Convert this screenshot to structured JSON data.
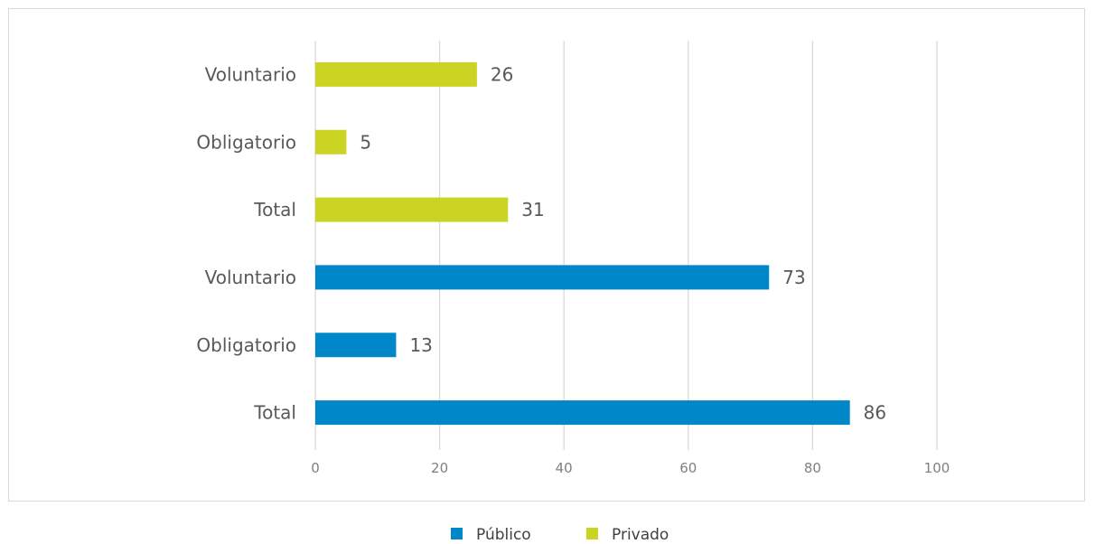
{
  "chart_data": {
    "type": "bar",
    "orientation": "horizontal",
    "categories": [
      "Total",
      "Obligatorio",
      "Voluntario",
      "Total",
      "Obligatorio",
      "Voluntario"
    ],
    "values": [
      86,
      13,
      73,
      31,
      5,
      26
    ],
    "series_of_category": [
      "Público",
      "Público",
      "Público",
      "Privado",
      "Privado",
      "Privado"
    ],
    "series": [
      {
        "name": "Público",
        "color": "#0087c9"
      },
      {
        "name": "Privado",
        "color": "#cbd422"
      }
    ],
    "x_ticks": [
      "0",
      "20",
      "40",
      "60",
      "80",
      "100"
    ],
    "xlim": [
      0,
      100
    ],
    "grid": true,
    "legend_position": "bottom",
    "title": "",
    "xlabel": "",
    "ylabel": ""
  },
  "colors": {
    "grid": "#d9d9d9",
    "text": "#595959"
  }
}
